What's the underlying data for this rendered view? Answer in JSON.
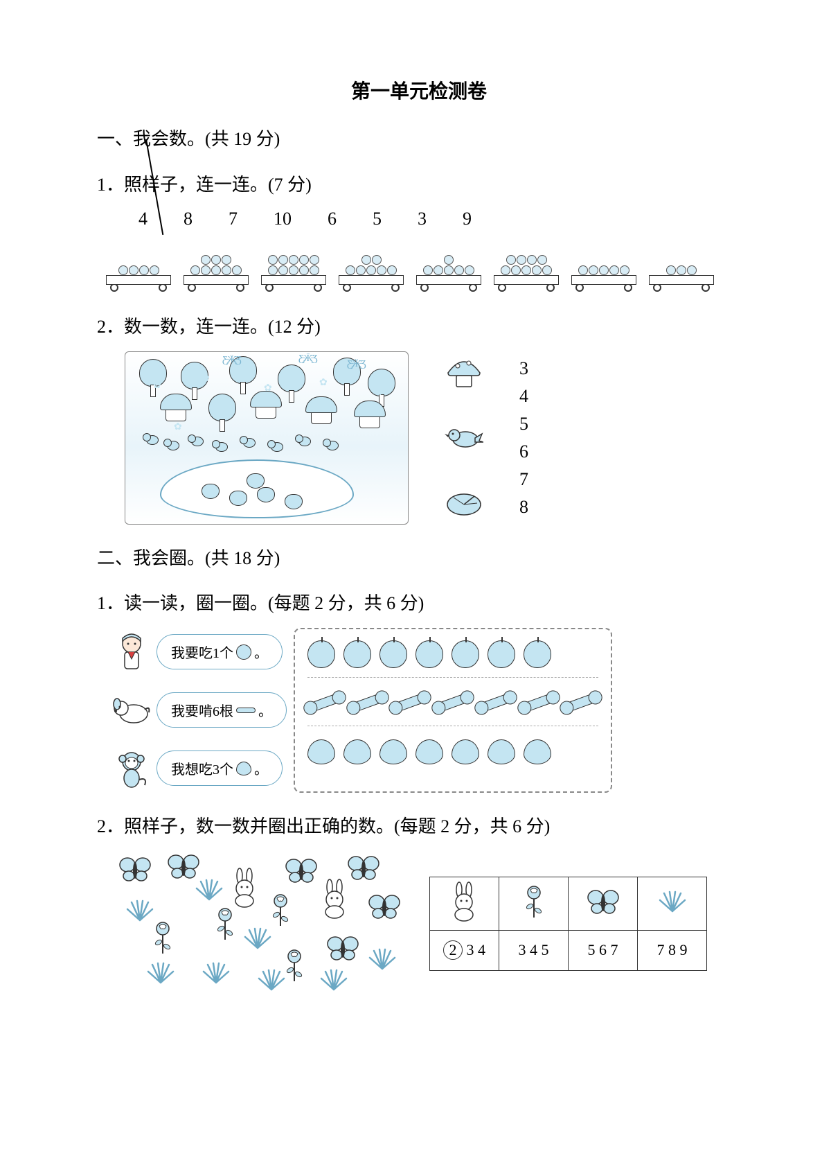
{
  "colors": {
    "accent": "#c4e5f2",
    "accent_stroke": "#6ba8c4",
    "text": "#000000",
    "background": "#ffffff",
    "border": "#333333"
  },
  "title": "第一单元检测卷",
  "section1": {
    "heading": "一、我会数。(共 19 分)",
    "q1": {
      "text": "1．照样子，连一连。(7 分)",
      "numbers": [
        "4",
        "8",
        "7",
        "10",
        "6",
        "5",
        "3",
        "9"
      ],
      "cart_counts": [
        4,
        8,
        10,
        7,
        6,
        9,
        5,
        3
      ]
    },
    "q2": {
      "text": "2．数一数，连一连。(12 分)",
      "match_numbers": [
        "3",
        "4",
        "5",
        "6",
        "7",
        "8"
      ],
      "scene_counts": {
        "trees": 7,
        "houses": 4,
        "chicks": 8,
        "frogs": 5,
        "flowers": 6,
        "butterflies": 3
      }
    }
  },
  "section2": {
    "heading": "二、我会圈。(共 18 分)",
    "q1": {
      "text": "1．读一读，圈一圈。(每题 2 分，共 6 分)",
      "speakers": [
        {
          "label_prefix": "我要吃1个",
          "item": "apple",
          "row_count": 7
        },
        {
          "label_prefix": "我要啃6根",
          "item": "bone",
          "row_count": 7
        },
        {
          "label_prefix": "我想吃3个",
          "item": "peach",
          "row_count": 7
        }
      ]
    },
    "q2": {
      "text": "2．照样子，数一数并圈出正确的数。(每题 2 分，共 6 分)",
      "scene_counts": {
        "butterflies": 6,
        "rabbits": 2,
        "roses": 4,
        "grass": 8
      },
      "table": {
        "icons": [
          "rabbit",
          "rose",
          "butterfly",
          "grass"
        ],
        "rows": [
          {
            "options": [
              "2",
              "3",
              "4"
            ],
            "circled": "2"
          },
          {
            "options": [
              "3",
              "4",
              "5"
            ],
            "circled": null
          },
          {
            "options": [
              "5",
              "6",
              "7"
            ],
            "circled": null
          },
          {
            "options": [
              "7",
              "8",
              "9"
            ],
            "circled": null
          }
        ]
      }
    }
  }
}
